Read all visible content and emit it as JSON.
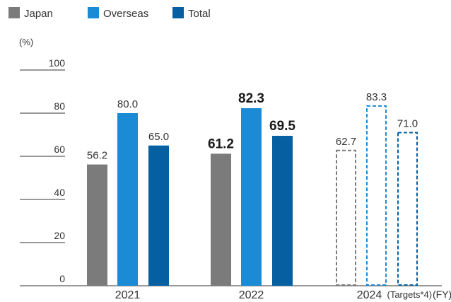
{
  "legend": [
    {
      "name": "Japan",
      "color": "#7b7b7c"
    },
    {
      "name": "Overseas",
      "color": "#1a8bd4"
    },
    {
      "name": "Total",
      "color": "#055fa1"
    }
  ],
  "chart_data": {
    "type": "bar",
    "ylabel": "(%)",
    "xlabel": "(FY)",
    "ylim": [
      0,
      100
    ],
    "yticks": [
      "0",
      "20",
      "40",
      "60",
      "80",
      "100"
    ],
    "legend_position": "top-left",
    "grid": false,
    "categories": [
      "2021",
      "2022",
      "2024"
    ],
    "category_note": {
      "2024": "(Targets*4)"
    },
    "series": [
      {
        "name": "Japan",
        "values": [
          56.2,
          61.2,
          62.7
        ],
        "labels": [
          "56.2",
          "61.2",
          "62.7"
        ]
      },
      {
        "name": "Overseas",
        "values": [
          80.0,
          82.3,
          83.3
        ],
        "labels": [
          "80.0",
          "82.3",
          "83.3"
        ]
      },
      {
        "name": "Total",
        "values": [
          65.0,
          69.5,
          71.0
        ],
        "labels": [
          "65.0",
          "69.5",
          "71.0"
        ]
      }
    ],
    "target_categories": [
      "2024"
    ],
    "emphasized_categories": [
      "2022"
    ]
  }
}
